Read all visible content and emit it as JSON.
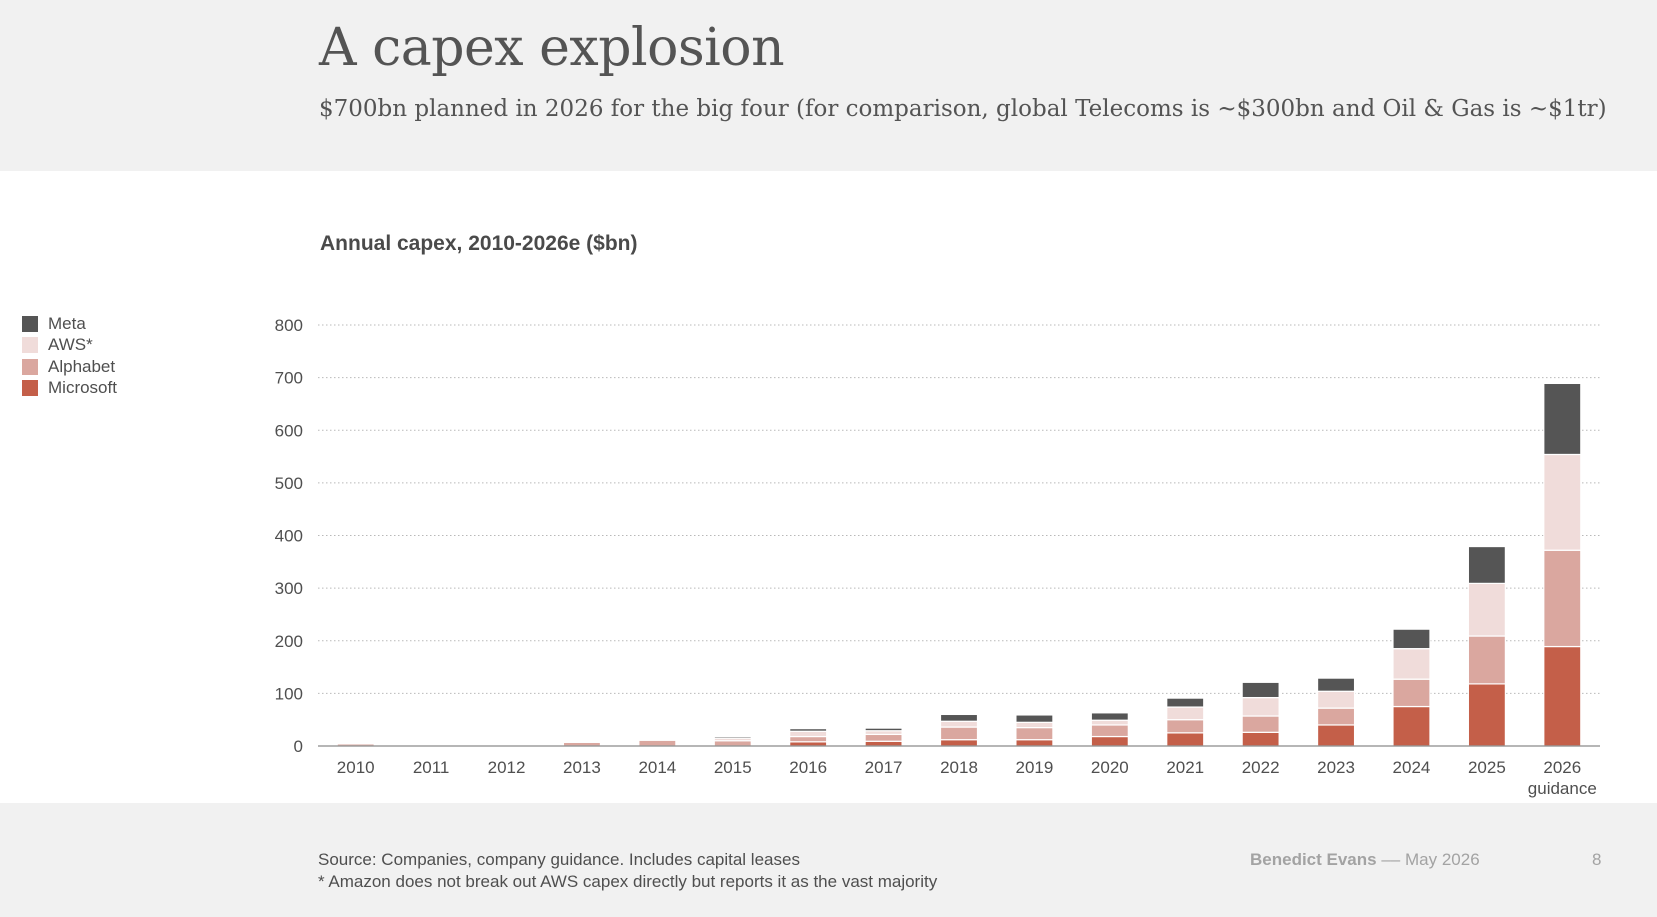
{
  "header": {
    "title": "A capex explosion",
    "subtitle": "$700bn planned in 2026 for the big four (for comparison, global Telecoms is ~$300bn and Oil & Gas is ~$1tr)"
  },
  "colors": {
    "Meta": "#555555",
    "AWS*": "#f0dcda",
    "Alphabet": "#daa79f",
    "Microsoft": "#c45f49"
  },
  "chart_data": {
    "type": "bar",
    "stacked": true,
    "title": "Annual capex, 2010-2026e ($bn)",
    "xlabel": "",
    "ylabel": "",
    "ylim": [
      0,
      800
    ],
    "yticks": [
      0,
      100,
      200,
      300,
      400,
      500,
      600,
      700,
      800
    ],
    "grid": true,
    "legend_position": "left",
    "categories": [
      "2010",
      "2011",
      "2012",
      "2013",
      "2014",
      "2015",
      "2016",
      "2017",
      "2018",
      "2019",
      "2020",
      "2021",
      "2022",
      "2023",
      "2024",
      "2025",
      "2026"
    ],
    "category_labels": [
      "2010",
      "2011",
      "2012",
      "2013",
      "2014",
      "2015",
      "2016",
      "2017",
      "2018",
      "2019",
      "2020",
      "2021",
      "2022",
      "2023",
      "2024",
      "2025",
      "2026\nguidance"
    ],
    "series": [
      {
        "name": "Microsoft",
        "values": [
          0,
          0,
          0,
          0,
          0,
          0,
          8,
          9,
          12,
          12,
          18,
          25,
          26,
          40,
          75,
          118,
          189
        ]
      },
      {
        "name": "Alphabet",
        "values": [
          4,
          0,
          0,
          7,
          11,
          10,
          10,
          13,
          24,
          23,
          22,
          25,
          31,
          32,
          52,
          91,
          183
        ]
      },
      {
        "name": "AWS*",
        "values": [
          1,
          0,
          0,
          2,
          2,
          5,
          10,
          7,
          11,
          10,
          9,
          24,
          35,
          32,
          58,
          100,
          182
        ]
      },
      {
        "name": "Meta",
        "values": [
          0,
          0,
          0,
          0,
          1,
          3,
          5,
          5,
          13,
          14,
          14,
          17,
          29,
          25,
          37,
          70,
          135
        ]
      }
    ]
  },
  "legend": {
    "items": [
      "Meta",
      "AWS*",
      "Alphabet",
      "Microsoft"
    ]
  },
  "footer": {
    "source": "Source: Companies, company guidance. Includes capital leases",
    "note": "*  Amazon does not break out AWS capex directly but reports it as the vast majority",
    "author": "Benedict Evans",
    "separator": "––",
    "date": "May 2026",
    "page": "8"
  }
}
